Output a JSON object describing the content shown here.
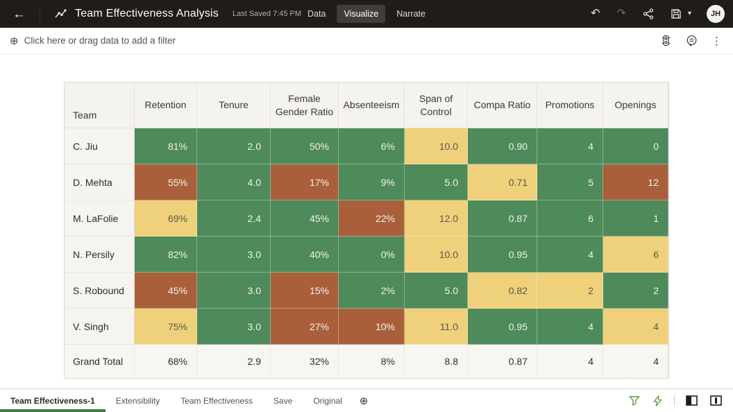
{
  "app": {
    "title": "Team Effectiveness Analysis",
    "last_saved": "Last Saved 7:45 PM",
    "nav_tabs": [
      {
        "label": "Data",
        "active": false
      },
      {
        "label": "Visualize",
        "active": true
      },
      {
        "label": "Narrate",
        "active": false
      }
    ],
    "avatar_initials": "JH"
  },
  "icons": {
    "back": "←",
    "undo": "↶",
    "redo": "↷",
    "save_caret": "▾",
    "add_filter": "⊕",
    "more_options": "⋮",
    "add_page": "⊕",
    "chart_logo": "svg-line-chart",
    "share": "svg-share",
    "save": "svg-floppy",
    "conditional_formatting": "svg-traffic-light",
    "comment": "svg-comment-bubble",
    "filter_token": "svg-funnel",
    "quick_actions": "svg-lightning",
    "panel_left": "svg-panel-left",
    "panel_split": "svg-panel-split"
  },
  "filter_bar": {
    "prompt": "Click here or drag data to add a filter"
  },
  "palette": {
    "green": "#4e8a5a",
    "red": "#a9603a",
    "yellow": "#eed17a",
    "topbar_bg": "#1f1c19",
    "accent_underline": "#3f7d3f"
  },
  "table": {
    "columns": [
      "Team",
      "Retention",
      "Tenure",
      "Female Gender Ratio",
      "Absenteeism",
      "Span of Control",
      "Compa Ratio",
      "Promotions",
      "Openings"
    ],
    "rows": [
      {
        "team": "C. Jiu",
        "cells": [
          {
            "v": "81%",
            "c": "green"
          },
          {
            "v": "2.0",
            "c": "green"
          },
          {
            "v": "50%",
            "c": "green"
          },
          {
            "v": "6%",
            "c": "green"
          },
          {
            "v": "10.0",
            "c": "yellow"
          },
          {
            "v": "0.90",
            "c": "green"
          },
          {
            "v": "4",
            "c": "green"
          },
          {
            "v": "0",
            "c": "green"
          }
        ]
      },
      {
        "team": "D. Mehta",
        "cells": [
          {
            "v": "55%",
            "c": "red"
          },
          {
            "v": "4.0",
            "c": "green"
          },
          {
            "v": "17%",
            "c": "red"
          },
          {
            "v": "9%",
            "c": "green"
          },
          {
            "v": "5.0",
            "c": "green"
          },
          {
            "v": "0.71",
            "c": "yellow"
          },
          {
            "v": "5",
            "c": "green"
          },
          {
            "v": "12",
            "c": "red"
          }
        ]
      },
      {
        "team": "M. LaFolie",
        "cells": [
          {
            "v": "69%",
            "c": "yellow"
          },
          {
            "v": "2.4",
            "c": "green"
          },
          {
            "v": "45%",
            "c": "green"
          },
          {
            "v": "22%",
            "c": "red"
          },
          {
            "v": "12.0",
            "c": "yellow"
          },
          {
            "v": "0.87",
            "c": "green"
          },
          {
            "v": "6",
            "c": "green"
          },
          {
            "v": "1",
            "c": "green"
          }
        ]
      },
      {
        "team": "N. Persily",
        "cells": [
          {
            "v": "82%",
            "c": "green"
          },
          {
            "v": "3.0",
            "c": "green"
          },
          {
            "v": "40%",
            "c": "green"
          },
          {
            "v": "0%",
            "c": "green"
          },
          {
            "v": "10.0",
            "c": "yellow"
          },
          {
            "v": "0.95",
            "c": "green"
          },
          {
            "v": "4",
            "c": "green"
          },
          {
            "v": "6",
            "c": "yellow"
          }
        ]
      },
      {
        "team": "S. Robound",
        "cells": [
          {
            "v": "45%",
            "c": "red"
          },
          {
            "v": "3.0",
            "c": "green"
          },
          {
            "v": "15%",
            "c": "red"
          },
          {
            "v": "2%",
            "c": "green"
          },
          {
            "v": "5.0",
            "c": "green"
          },
          {
            "v": "0.82",
            "c": "yellow"
          },
          {
            "v": "2",
            "c": "yellow"
          },
          {
            "v": "2",
            "c": "green"
          }
        ]
      },
      {
        "team": "V. Singh",
        "cells": [
          {
            "v": "75%",
            "c": "yellow"
          },
          {
            "v": "3.0",
            "c": "green"
          },
          {
            "v": "27%",
            "c": "red"
          },
          {
            "v": "10%",
            "c": "red"
          },
          {
            "v": "11.0",
            "c": "yellow"
          },
          {
            "v": "0.95",
            "c": "green"
          },
          {
            "v": "4",
            "c": "green"
          },
          {
            "v": "4",
            "c": "yellow"
          }
        ]
      }
    ],
    "total": {
      "team": "Grand Total",
      "cells": [
        "68%",
        "2.9",
        "32%",
        "8%",
        "8.8",
        "0.87",
        "4",
        "4"
      ]
    }
  },
  "bottom_bar": {
    "tabs": [
      {
        "label": "Team Effectiveness-1",
        "active": true
      },
      {
        "label": "Extensibility",
        "active": false
      },
      {
        "label": "Team Effectiveness",
        "active": false
      },
      {
        "label": "Save",
        "active": false
      },
      {
        "label": "Original",
        "active": false
      }
    ]
  }
}
